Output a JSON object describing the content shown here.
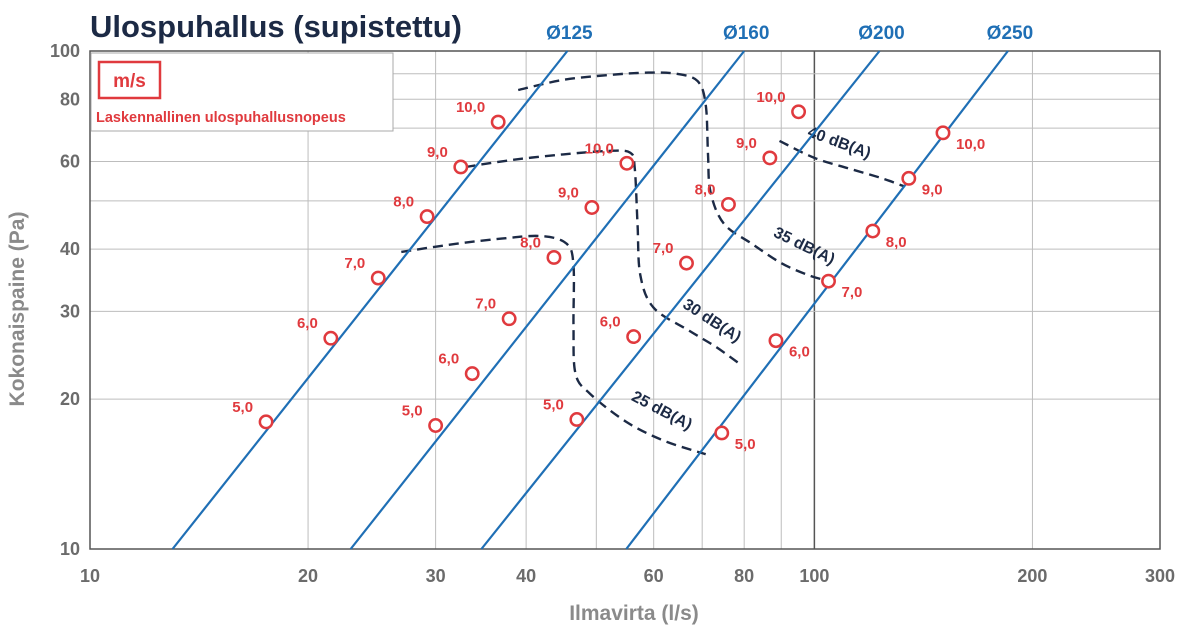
{
  "chart_data": {
    "type": "line",
    "title": "Ulospuhallus (supistettu)",
    "xlabel": "Ilmavirta (l/s)",
    "ylabel": "Kokonaispaine (Pa)",
    "x_scale": "log",
    "y_scale": "log",
    "xlim": [
      10,
      300
    ],
    "ylim": [
      10,
      100
    ],
    "x_ticks": [
      10,
      20,
      30,
      40,
      60,
      80,
      100,
      200,
      300
    ],
    "x_tick_labels": [
      "10",
      "20",
      "30",
      "40",
      "60",
      "80",
      "100",
      "200",
      "300"
    ],
    "y_ticks": [
      10,
      20,
      30,
      40,
      60,
      80,
      100
    ],
    "y_tick_labels": [
      "10",
      "20",
      "30",
      "40",
      "60",
      "80",
      "100"
    ],
    "grid": true,
    "legend": {
      "unit": "m/s",
      "description": "Laskennallinen ulospuhallusnopeus",
      "position": "top-left"
    },
    "series": [
      {
        "name": "Ø125",
        "line": [
          [
            13.0,
            10
          ],
          [
            45.6,
            100
          ]
        ],
        "points": [
          {
            "x": 17.5,
            "y": 18.0,
            "label": "5,0"
          },
          {
            "x": 21.5,
            "y": 26.5,
            "label": "6,0"
          },
          {
            "x": 25.0,
            "y": 35.0,
            "label": "7,0"
          },
          {
            "x": 29.2,
            "y": 46.5,
            "label": "8,0"
          },
          {
            "x": 32.5,
            "y": 58.5,
            "label": "9,0"
          },
          {
            "x": 36.6,
            "y": 72.0,
            "label": "10,0"
          }
        ]
      },
      {
        "name": "Ø160",
        "line": [
          [
            22.9,
            10
          ],
          [
            80.0,
            100
          ]
        ],
        "points": [
          {
            "x": 30.0,
            "y": 17.7,
            "label": "5,0"
          },
          {
            "x": 33.7,
            "y": 22.5,
            "label": "6,0"
          },
          {
            "x": 37.9,
            "y": 29.0,
            "label": "7,0"
          },
          {
            "x": 43.7,
            "y": 38.5,
            "label": "8,0"
          },
          {
            "x": 49.3,
            "y": 48.5,
            "label": "9,0"
          },
          {
            "x": 55.1,
            "y": 59.5,
            "label": "10,0"
          }
        ]
      },
      {
        "name": "Ø200",
        "line": [
          [
            34.7,
            10
          ],
          [
            123.0,
            100
          ]
        ],
        "points": [
          {
            "x": 47.0,
            "y": 18.2,
            "label": "5,0"
          },
          {
            "x": 56.3,
            "y": 26.7,
            "label": "6,0"
          },
          {
            "x": 66.6,
            "y": 37.5,
            "label": "7,0"
          },
          {
            "x": 76.1,
            "y": 49.2,
            "label": "8,0"
          },
          {
            "x": 86.8,
            "y": 61.0,
            "label": "9,0"
          },
          {
            "x": 95.1,
            "y": 75.5,
            "label": "10,0"
          }
        ]
      },
      {
        "name": "Ø250",
        "line": [
          [
            55.0,
            10
          ],
          [
            185.0,
            100
          ]
        ],
        "points": [
          {
            "x": 74.5,
            "y": 17.1,
            "label": "5,0"
          },
          {
            "x": 88.5,
            "y": 26.2,
            "label": "6,0"
          },
          {
            "x": 104.6,
            "y": 34.5,
            "label": "7,0"
          },
          {
            "x": 120.4,
            "y": 43.5,
            "label": "8,0"
          },
          {
            "x": 135.0,
            "y": 55.5,
            "label": "9,0"
          },
          {
            "x": 150.5,
            "y": 68.5,
            "label": "10,0"
          }
        ]
      }
    ],
    "sound_curves": [
      {
        "name": "25 dB(A)",
        "points": [
          [
            26.9,
            39.5
          ],
          [
            32.0,
            41.0
          ],
          [
            37.0,
            42.0
          ],
          [
            42.0,
            42.5
          ],
          [
            45.5,
            41.0
          ],
          [
            46.5,
            37.0
          ],
          [
            46.5,
            28.0
          ],
          [
            46.8,
            22.5
          ],
          [
            49.0,
            20.5
          ],
          [
            55.0,
            18.0
          ],
          [
            62.0,
            16.5
          ],
          [
            70.8,
            15.5
          ]
        ]
      },
      {
        "name": "30 dB(A)",
        "points": [
          [
            33.0,
            58.5
          ],
          [
            38.5,
            60.5
          ],
          [
            45.0,
            62.0
          ],
          [
            52.0,
            63.0
          ],
          [
            55.7,
            62.5
          ],
          [
            56.5,
            58.0
          ],
          [
            57.0,
            45.0
          ],
          [
            57.5,
            35.5
          ],
          [
            60.0,
            30.5
          ],
          [
            67.0,
            27.5
          ],
          [
            73.0,
            25.5
          ],
          [
            79.0,
            23.5
          ]
        ]
      },
      {
        "name": "35 dB(A)",
        "points": [
          [
            39.0,
            83.5
          ],
          [
            45.0,
            87.5
          ],
          [
            52.0,
            89.5
          ],
          [
            59.0,
            90.5
          ],
          [
            64.5,
            90.0
          ],
          [
            69.0,
            87.0
          ],
          [
            70.8,
            78.0
          ],
          [
            71.3,
            62.0
          ],
          [
            71.9,
            52.0
          ],
          [
            75.0,
            45.0
          ],
          [
            82.0,
            41.0
          ],
          [
            90.0,
            37.5
          ],
          [
            98.0,
            35.5
          ],
          [
            104.6,
            34.5
          ]
        ]
      },
      {
        "name": "40 dB(A)",
        "points": [
          [
            89.5,
            66.0
          ],
          [
            100.0,
            61.0
          ],
          [
            112.0,
            58.0
          ],
          [
            124.0,
            55.5
          ],
          [
            133.0,
            53.5
          ]
        ]
      }
    ]
  }
}
